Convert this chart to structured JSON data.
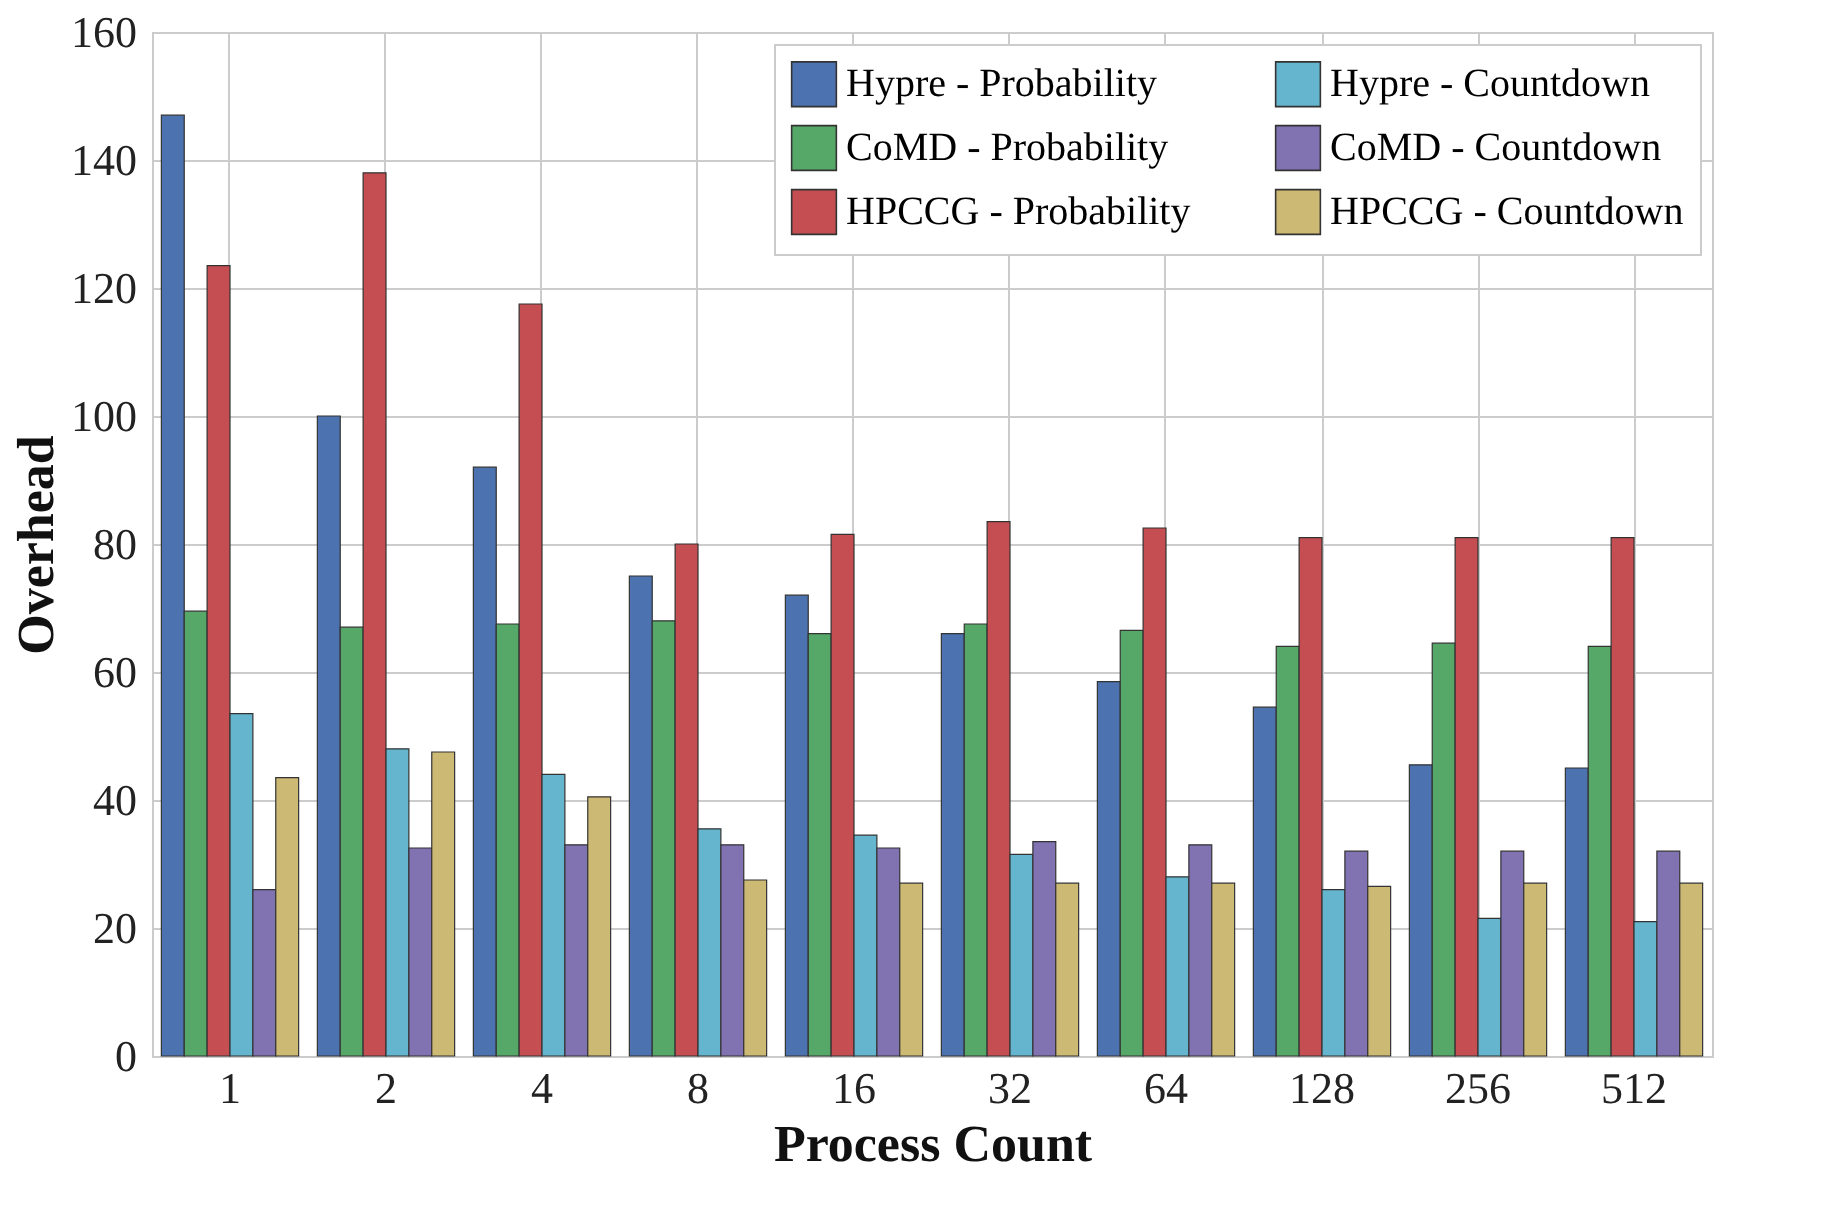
{
  "chart_data": {
    "type": "bar",
    "xlabel": "Process Count",
    "ylabel": "Overhead",
    "categories": [
      "1",
      "2",
      "4",
      "8",
      "16",
      "32",
      "64",
      "128",
      "256",
      "512"
    ],
    "series": [
      {
        "name": "Hypre - Probability",
        "color": "#4c72b0",
        "values": [
          147,
          100,
          92,
          75,
          72,
          66,
          58.5,
          54.5,
          45.5,
          45
        ]
      },
      {
        "name": "CoMD - Probability",
        "color": "#55a868",
        "values": [
          69.5,
          67,
          67.5,
          68,
          66,
          67.5,
          66.5,
          64,
          64.5,
          64
        ]
      },
      {
        "name": "HPCCG - Probability",
        "color": "#c44e52",
        "values": [
          123.5,
          138,
          117.5,
          80,
          81.5,
          83.5,
          82.5,
          81,
          81,
          81
        ]
      },
      {
        "name": "Hypre - Countdown",
        "color": "#64b5cd",
        "values": [
          53.5,
          48,
          44,
          35.5,
          34.5,
          31.5,
          28,
          26,
          21.5,
          21
        ]
      },
      {
        "name": "CoMD - Countdown",
        "color": "#8172b2",
        "values": [
          26,
          32.5,
          33,
          33,
          32.5,
          33.5,
          33,
          32,
          32,
          32
        ]
      },
      {
        "name": "HPCCG - Countdown",
        "color": "#ccb974",
        "values": [
          43.5,
          47.5,
          40.5,
          27.5,
          27,
          27,
          27,
          26.5,
          27,
          27
        ]
      }
    ],
    "ylim": [
      0,
      160
    ],
    "yticks": [
      0,
      20,
      40,
      60,
      80,
      100,
      120,
      140,
      160
    ],
    "grid": true,
    "legend": "top right"
  }
}
